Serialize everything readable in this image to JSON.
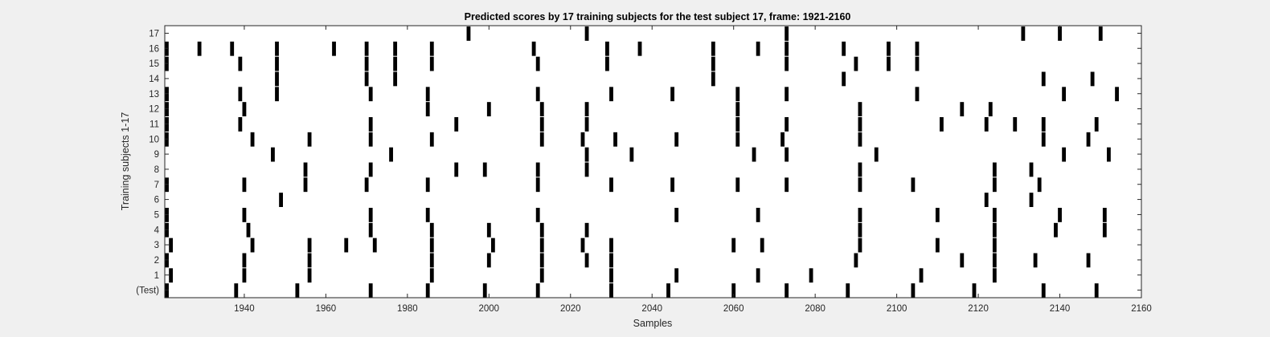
{
  "chart_data": {
    "type": "raster",
    "title": "Predicted scores by 17 training subjects for the test subject 17, frame: 1921-2160",
    "xlabel": "Samples",
    "ylabel": "Training subjects 1-17",
    "xlim": [
      1920.5,
      2160
    ],
    "xticks": [
      1940,
      1960,
      1980,
      2000,
      2020,
      2040,
      2060,
      2080,
      2100,
      2120,
      2140,
      2160
    ],
    "ytick_labels": [
      "(Test)",
      "1",
      "2",
      "3",
      "4",
      "5",
      "6",
      "7",
      "8",
      "9",
      "10",
      "11",
      "12",
      "13",
      "14",
      "15",
      "16",
      "17"
    ],
    "grid": false,
    "colors": {
      "background": "#f0f0f0",
      "plot_area": "#ffffff",
      "marks": "#000000"
    },
    "rows": [
      {
        "label": "(Test)",
        "x": [
          1921,
          1938,
          1953,
          1971,
          1985,
          1999,
          2012,
          2030,
          2044,
          2060,
          2073,
          2088,
          2104,
          2119,
          2136,
          2149
        ]
      },
      {
        "label": "1",
        "x": [
          1922,
          1940,
          1956,
          1986,
          2013,
          2030,
          2046,
          2066,
          2079,
          2106,
          2124
        ]
      },
      {
        "label": "2",
        "x": [
          1921,
          1940,
          1956,
          1986,
          2000,
          2013,
          2024,
          2030,
          2090,
          2116,
          2124,
          2134,
          2147
        ]
      },
      {
        "label": "3",
        "x": [
          1922,
          1942,
          1956,
          1965,
          1972,
          1986,
          2001,
          2013,
          2023,
          2030,
          2060,
          2067,
          2091,
          2110,
          2124
        ]
      },
      {
        "label": "4",
        "x": [
          1921,
          1941,
          1971,
          1986,
          2000,
          2013,
          2024,
          2091,
          2124,
          2139,
          2151
        ]
      },
      {
        "label": "5",
        "x": [
          1921,
          1940,
          1971,
          1985,
          2012,
          2046,
          2066,
          2091,
          2110,
          2124,
          2140,
          2151
        ]
      },
      {
        "label": "6",
        "x": [
          1949,
          2122,
          2133
        ]
      },
      {
        "label": "7",
        "x": [
          1921,
          1940,
          1955,
          1970,
          1985,
          2012,
          2030,
          2045,
          2061,
          2073,
          2091,
          2104,
          2124,
          2135
        ]
      },
      {
        "label": "8",
        "x": [
          1955,
          1971,
          1992,
          1999,
          2012,
          2024,
          2091,
          2124,
          2133
        ]
      },
      {
        "label": "9",
        "x": [
          1947,
          1976,
          2024,
          2035,
          2065,
          2073,
          2095,
          2141,
          2152
        ]
      },
      {
        "label": "10",
        "x": [
          1920.5,
          1942,
          1956,
          1971,
          1986,
          2013,
          2023,
          2031,
          2046,
          2061,
          2072,
          2091,
          2136,
          2147
        ]
      },
      {
        "label": "11",
        "x": [
          1921,
          1939,
          1971,
          1992,
          2013,
          2024,
          2061,
          2073,
          2091,
          2111,
          2122,
          2129,
          2136,
          2149
        ]
      },
      {
        "label": "12",
        "x": [
          1921,
          1940,
          1985,
          2000,
          2013,
          2024,
          2061,
          2091,
          2116,
          2123
        ]
      },
      {
        "label": "13",
        "x": [
          1921,
          1939,
          1948,
          1971,
          1985,
          2012,
          2030,
          2045,
          2061,
          2073,
          2105,
          2141,
          2154
        ]
      },
      {
        "label": "14",
        "x": [
          1948,
          1970,
          1977,
          2055,
          2087,
          2136,
          2148
        ]
      },
      {
        "label": "15",
        "x": [
          1920.5,
          1939,
          1948,
          1970,
          1977,
          1986,
          2012,
          2029,
          2055,
          2073,
          2090,
          2098,
          2105
        ]
      },
      {
        "label": "16",
        "x": [
          1920.5,
          1929,
          1937,
          1948,
          1962,
          1970,
          1977,
          1986,
          2011,
          2029,
          2037,
          2055,
          2066,
          2073,
          2087,
          2098,
          2105
        ]
      },
      {
        "label": "17",
        "x": [
          1995,
          2024,
          2073,
          2131,
          2140,
          2150
        ]
      }
    ]
  }
}
